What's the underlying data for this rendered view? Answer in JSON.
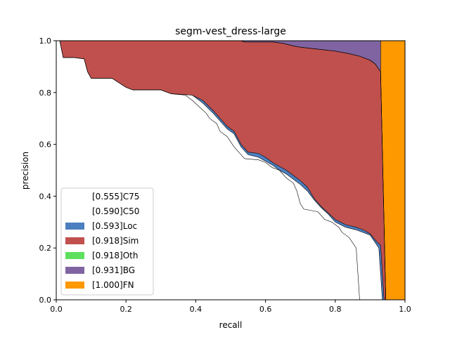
{
  "chart_data": {
    "type": "area",
    "title": "segm-vest_dress-large",
    "xlabel": "recall",
    "ylabel": "precision",
    "xlim": [
      0,
      1
    ],
    "ylim": [
      0,
      1
    ],
    "xticks": [
      "0.0",
      "0.2",
      "0.4",
      "0.6",
      "0.8",
      "1.0"
    ],
    "yticks": [
      "0.0",
      "0.2",
      "0.4",
      "0.6",
      "0.8",
      "1.0"
    ],
    "legend_position": "lower-left",
    "colors": {
      "C75": "#ffffff",
      "C50": "#ffffff",
      "Loc": "#4c7fbf",
      "Sim": "#c0504d",
      "Oth": "#5ee05e",
      "BG": "#8064a2",
      "FN": "#ff9900"
    },
    "legend": [
      {
        "key": "C75",
        "label": "[0.555]C75"
      },
      {
        "key": "C50",
        "label": "[0.590]C50"
      },
      {
        "key": "Loc",
        "label": "[0.593]Loc"
      },
      {
        "key": "Sim",
        "label": "[0.918]Sim"
      },
      {
        "key": "Oth",
        "label": "[0.918]Oth"
      },
      {
        "key": "BG",
        "label": "[0.931]BG"
      },
      {
        "key": "FN",
        "label": "[1.000]FN"
      }
    ],
    "series": [
      {
        "name": "C75",
        "points": [
          [
            0,
            1
          ],
          [
            0.01,
            1
          ],
          [
            0.02,
            0.935
          ],
          [
            0.05,
            0.935
          ],
          [
            0.08,
            0.93
          ],
          [
            0.09,
            0.88
          ],
          [
            0.1,
            0.855
          ],
          [
            0.16,
            0.855
          ],
          [
            0.2,
            0.82
          ],
          [
            0.22,
            0.81
          ],
          [
            0.3,
            0.81
          ],
          [
            0.33,
            0.795
          ],
          [
            0.37,
            0.79
          ],
          [
            0.39,
            0.77
          ],
          [
            0.41,
            0.745
          ],
          [
            0.43,
            0.72
          ],
          [
            0.44,
            0.7
          ],
          [
            0.46,
            0.68
          ],
          [
            0.47,
            0.65
          ],
          [
            0.49,
            0.63
          ],
          [
            0.5,
            0.61
          ],
          [
            0.51,
            0.59
          ],
          [
            0.53,
            0.56
          ],
          [
            0.54,
            0.545
          ],
          [
            0.58,
            0.54
          ],
          [
            0.6,
            0.53
          ],
          [
            0.62,
            0.51
          ],
          [
            0.64,
            0.5
          ],
          [
            0.66,
            0.47
          ],
          [
            0.68,
            0.45
          ],
          [
            0.69,
            0.42
          ],
          [
            0.7,
            0.37
          ],
          [
            0.71,
            0.35
          ],
          [
            0.75,
            0.34
          ],
          [
            0.77,
            0.31
          ],
          [
            0.79,
            0.3
          ],
          [
            0.81,
            0.28
          ],
          [
            0.82,
            0.26
          ],
          [
            0.84,
            0.24
          ],
          [
            0.86,
            0.2
          ],
          [
            0.87,
            0.0
          ],
          [
            0.88,
            0.0
          ],
          [
            1,
            0
          ]
        ]
      },
      {
        "name": "C50",
        "points": [
          [
            0,
            1
          ],
          [
            0.01,
            1
          ],
          [
            0.02,
            0.935
          ],
          [
            0.05,
            0.935
          ],
          [
            0.08,
            0.93
          ],
          [
            0.09,
            0.88
          ],
          [
            0.1,
            0.855
          ],
          [
            0.16,
            0.855
          ],
          [
            0.2,
            0.82
          ],
          [
            0.22,
            0.81
          ],
          [
            0.3,
            0.81
          ],
          [
            0.33,
            0.795
          ],
          [
            0.39,
            0.79
          ],
          [
            0.42,
            0.76
          ],
          [
            0.45,
            0.72
          ],
          [
            0.47,
            0.69
          ],
          [
            0.49,
            0.66
          ],
          [
            0.51,
            0.64
          ],
          [
            0.53,
            0.59
          ],
          [
            0.55,
            0.56
          ],
          [
            0.58,
            0.55
          ],
          [
            0.6,
            0.535
          ],
          [
            0.62,
            0.52
          ],
          [
            0.64,
            0.5
          ],
          [
            0.66,
            0.485
          ],
          [
            0.68,
            0.465
          ],
          [
            0.7,
            0.445
          ],
          [
            0.72,
            0.42
          ],
          [
            0.74,
            0.385
          ],
          [
            0.76,
            0.355
          ],
          [
            0.78,
            0.33
          ],
          [
            0.8,
            0.3
          ],
          [
            0.83,
            0.28
          ],
          [
            0.86,
            0.27
          ],
          [
            0.88,
            0.26
          ],
          [
            0.9,
            0.25
          ],
          [
            0.915,
            0.22
          ],
          [
            0.925,
            0.2
          ],
          [
            0.935,
            0.0
          ],
          [
            1,
            0
          ]
        ]
      },
      {
        "name": "Loc",
        "points": [
          [
            0,
            1
          ],
          [
            0.01,
            1
          ],
          [
            0.02,
            0.935
          ],
          [
            0.05,
            0.935
          ],
          [
            0.08,
            0.93
          ],
          [
            0.09,
            0.88
          ],
          [
            0.1,
            0.855
          ],
          [
            0.16,
            0.855
          ],
          [
            0.2,
            0.82
          ],
          [
            0.22,
            0.81
          ],
          [
            0.3,
            0.81
          ],
          [
            0.33,
            0.795
          ],
          [
            0.39,
            0.79
          ],
          [
            0.42,
            0.77
          ],
          [
            0.45,
            0.73
          ],
          [
            0.47,
            0.7
          ],
          [
            0.49,
            0.67
          ],
          [
            0.51,
            0.65
          ],
          [
            0.53,
            0.6
          ],
          [
            0.55,
            0.57
          ],
          [
            0.58,
            0.565
          ],
          [
            0.6,
            0.55
          ],
          [
            0.62,
            0.53
          ],
          [
            0.64,
            0.515
          ],
          [
            0.66,
            0.5
          ],
          [
            0.68,
            0.48
          ],
          [
            0.7,
            0.46
          ],
          [
            0.72,
            0.435
          ],
          [
            0.74,
            0.39
          ],
          [
            0.76,
            0.36
          ],
          [
            0.78,
            0.335
          ],
          [
            0.8,
            0.31
          ],
          [
            0.83,
            0.29
          ],
          [
            0.86,
            0.28
          ],
          [
            0.88,
            0.27
          ],
          [
            0.9,
            0.255
          ],
          [
            0.915,
            0.23
          ],
          [
            0.93,
            0.21
          ],
          [
            0.94,
            0.0
          ],
          [
            1,
            0
          ]
        ]
      },
      {
        "name": "Sim",
        "points": [
          [
            0,
            1
          ],
          [
            0.01,
            1
          ],
          [
            0.53,
            1
          ],
          [
            0.54,
            0.995
          ],
          [
            0.62,
            0.995
          ],
          [
            0.65,
            0.99
          ],
          [
            0.68,
            0.98
          ],
          [
            0.7,
            0.975
          ],
          [
            0.8,
            0.96
          ],
          [
            0.84,
            0.95
          ],
          [
            0.87,
            0.94
          ],
          [
            0.9,
            0.925
          ],
          [
            0.915,
            0.91
          ],
          [
            0.93,
            0.88
          ],
          [
            0.945,
            0.0
          ],
          [
            1,
            0
          ]
        ]
      },
      {
        "name": "Oth",
        "points": [
          [
            0,
            1
          ],
          [
            0.01,
            1
          ],
          [
            0.53,
            1
          ],
          [
            0.54,
            0.995
          ],
          [
            0.62,
            0.995
          ],
          [
            0.65,
            0.99
          ],
          [
            0.68,
            0.98
          ],
          [
            0.7,
            0.975
          ],
          [
            0.8,
            0.96
          ],
          [
            0.84,
            0.95
          ],
          [
            0.87,
            0.94
          ],
          [
            0.9,
            0.925
          ],
          [
            0.915,
            0.91
          ],
          [
            0.93,
            0.88
          ],
          [
            0.945,
            0.0
          ],
          [
            1,
            0
          ]
        ]
      },
      {
        "name": "BG",
        "points": [
          [
            0,
            1
          ],
          [
            0.93,
            1
          ],
          [
            0.93,
            0.88
          ],
          [
            0.945,
            0.0
          ],
          [
            1,
            0
          ]
        ]
      },
      {
        "name": "FN",
        "points": [
          [
            0,
            1
          ],
          [
            1,
            1
          ],
          [
            1,
            0
          ]
        ]
      }
    ]
  }
}
